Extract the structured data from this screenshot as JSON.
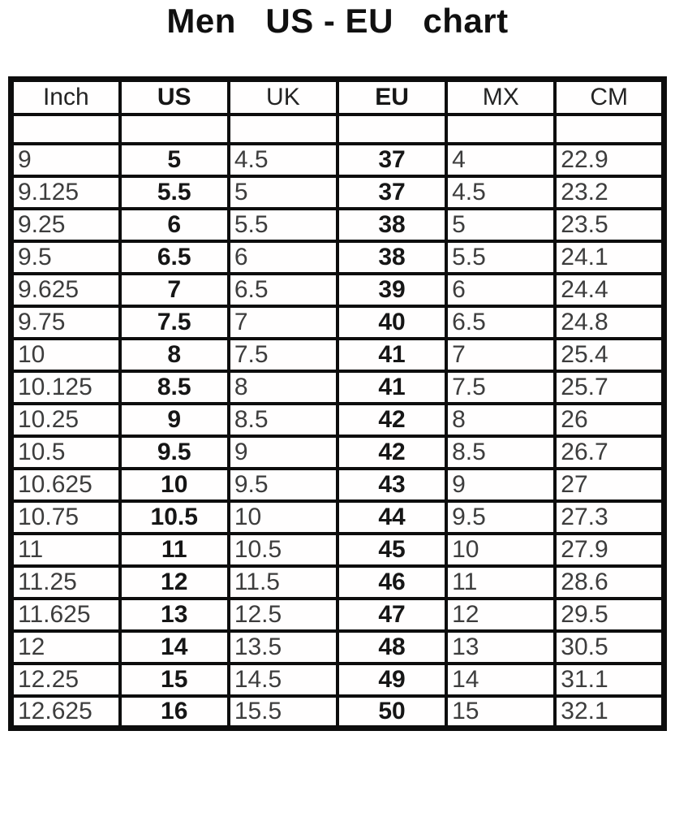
{
  "title": "Men   US - EU   chart",
  "colors": {
    "border": "#0d0d0d",
    "text": "#3d3d3d",
    "text_bold": "#161616",
    "background": "#ffffff"
  },
  "chart_data": {
    "type": "table",
    "title": "Men   US - EU   chart",
    "columns": [
      {
        "label": "Inch",
        "bold": false,
        "align": "left"
      },
      {
        "label": "US",
        "bold": true,
        "align": "center"
      },
      {
        "label": "UK",
        "bold": false,
        "align": "left"
      },
      {
        "label": "EU",
        "bold": true,
        "align": "center"
      },
      {
        "label": "MX",
        "bold": false,
        "align": "left"
      },
      {
        "label": "CM",
        "bold": false,
        "align": "left"
      }
    ],
    "spacer_row": [
      "",
      "",
      "",
      "",
      "",
      ""
    ],
    "rows": [
      [
        "9",
        "5",
        "4.5",
        "37",
        "4",
        "22.9"
      ],
      [
        "9.125",
        "5.5",
        "5",
        "37",
        "4.5",
        "23.2"
      ],
      [
        "9.25",
        "6",
        "5.5",
        "38",
        "5",
        "23.5"
      ],
      [
        "9.5",
        "6.5",
        "6",
        "38",
        "5.5",
        "24.1"
      ],
      [
        "9.625",
        "7",
        "6.5",
        "39",
        "6",
        "24.4"
      ],
      [
        "9.75",
        "7.5",
        "7",
        "40",
        "6.5",
        "24.8"
      ],
      [
        "10",
        "8",
        "7.5",
        "41",
        "7",
        "25.4"
      ],
      [
        "10.125",
        "8.5",
        "8",
        "41",
        "7.5",
        "25.7"
      ],
      [
        "10.25",
        "9",
        "8.5",
        "42",
        "8",
        "26"
      ],
      [
        "10.5",
        "9.5",
        "9",
        "42",
        "8.5",
        "26.7"
      ],
      [
        "10.625",
        "10",
        "9.5",
        "43",
        "9",
        "27"
      ],
      [
        "10.75",
        "10.5",
        "10",
        "44",
        "9.5",
        "27.3"
      ],
      [
        "11",
        "11",
        "10.5",
        "45",
        "10",
        "27.9"
      ],
      [
        "11.25",
        "12",
        "11.5",
        "46",
        "11",
        "28.6"
      ],
      [
        "11.625",
        "13",
        "12.5",
        "47",
        "12",
        "29.5"
      ],
      [
        "12",
        "14",
        "13.5",
        "48",
        "13",
        "30.5"
      ],
      [
        "12.25",
        "15",
        "14.5",
        "49",
        "14",
        "31.1"
      ],
      [
        "12.625",
        "16",
        "15.5",
        "50",
        "15",
        "32.1"
      ]
    ]
  }
}
